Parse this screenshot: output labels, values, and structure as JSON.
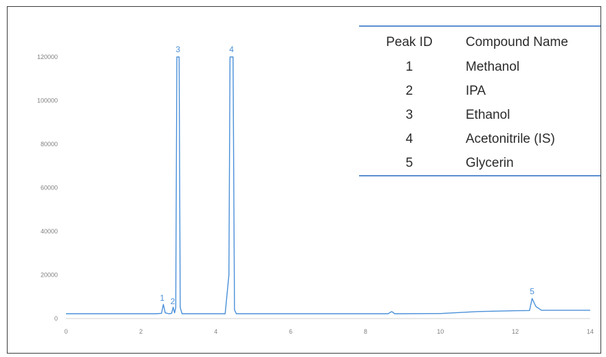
{
  "chart_data": {
    "type": "line",
    "xlim": [
      0,
      14
    ],
    "ylim": [
      0,
      120000
    ],
    "x_ticks": [
      "0",
      "2",
      "4",
      "6",
      "8",
      "10",
      "12",
      "14"
    ],
    "y_ticks": [
      "0",
      "20000",
      "40000",
      "60000",
      "80000",
      "100000",
      "120000"
    ],
    "grid": false,
    "line_color": "#4a90d9",
    "series": [
      {
        "points": [
          [
            0,
            2200
          ],
          [
            2.4,
            2200
          ],
          [
            2.55,
            2400
          ],
          [
            2.6,
            6500
          ],
          [
            2.65,
            2600
          ],
          [
            2.75,
            2200
          ],
          [
            2.82,
            2400
          ],
          [
            2.86,
            5200
          ],
          [
            2.9,
            2600
          ],
          [
            2.93,
            5000
          ],
          [
            2.96,
            120000
          ],
          [
            3.02,
            120000
          ],
          [
            3.05,
            5000
          ],
          [
            3.1,
            2200
          ],
          [
            4.25,
            2200
          ],
          [
            4.35,
            20000
          ],
          [
            4.38,
            120000
          ],
          [
            4.46,
            120000
          ],
          [
            4.5,
            4000
          ],
          [
            4.55,
            2200
          ],
          [
            8.6,
            2200
          ],
          [
            8.7,
            3200
          ],
          [
            8.78,
            2200
          ],
          [
            10.0,
            2300
          ],
          [
            11.0,
            3200
          ],
          [
            12.0,
            3600
          ],
          [
            12.38,
            3700
          ],
          [
            12.45,
            9200
          ],
          [
            12.55,
            5500
          ],
          [
            12.7,
            3800
          ],
          [
            13.5,
            3800
          ],
          [
            14,
            3800
          ]
        ]
      }
    ],
    "peak_labels": [
      {
        "label": "1",
        "x": 2.57,
        "y": 7500
      },
      {
        "label": "2",
        "x": 2.85,
        "y": 6000
      },
      {
        "label": "3",
        "x": 2.99,
        "y": 121500
      },
      {
        "label": "4",
        "x": 4.42,
        "y": 121500
      },
      {
        "label": "5",
        "x": 12.45,
        "y": 10500
      }
    ],
    "legend_table": {
      "headers": [
        "Peak ID",
        "Compound Name"
      ],
      "rows": [
        [
          "1",
          "Methanol"
        ],
        [
          "2",
          "IPA"
        ],
        [
          "3",
          "Ethanol"
        ],
        [
          "4",
          "Acetonitrile (IS)"
        ],
        [
          "5",
          "Glycerin"
        ]
      ]
    }
  }
}
